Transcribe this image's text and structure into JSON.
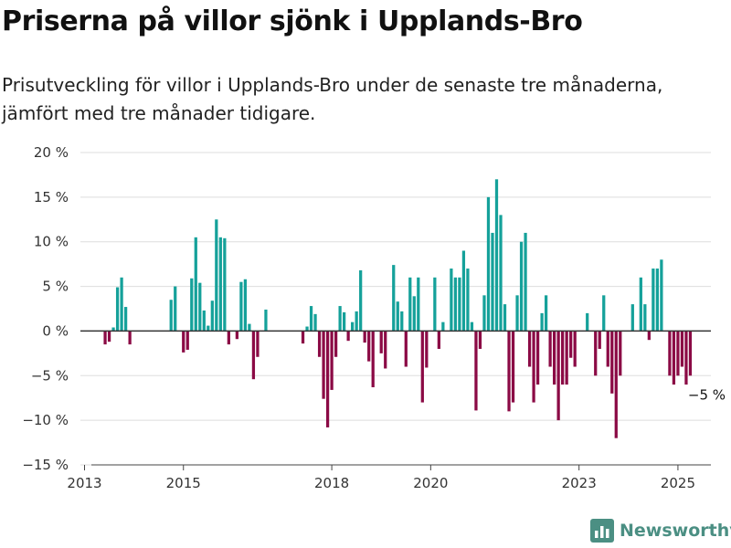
{
  "title": "Priserna på villor sjönk i Upplands-Bro",
  "subtitle": "Prisutveckling för villor i Upplands-Bro under de senaste tre månaderna, jämfört med tre månader tidigare.",
  "brand": {
    "name": "Newsworthy",
    "logo_icon": "newsworthy-logo-icon"
  },
  "colors": {
    "positive": "#15a19a",
    "negative": "#8b0a45",
    "grid": "#dddddd",
    "zero": "#333333"
  },
  "chart_data": {
    "type": "bar",
    "ylim": [
      -15,
      20
    ],
    "yticks": [
      -15,
      -10,
      -5,
      0,
      5,
      10,
      15,
      20
    ],
    "ytick_labels": [
      "−15 %",
      "−10 %",
      "−5 %",
      "0 %",
      "5 %",
      "10 %",
      "15 %",
      "20 %"
    ],
    "xlim": [
      "2012-12",
      "2025-09"
    ],
    "xticks": [
      "2013-01",
      "2015-01",
      "2018-01",
      "2020-01",
      "2023-01",
      "2025-01"
    ],
    "xtick_labels": [
      "2013",
      "2015",
      "2018",
      "2020",
      "2023",
      "2025"
    ],
    "grid": true,
    "annotation": {
      "x": "2025-04",
      "y": -5,
      "label": "−5 %"
    },
    "series": [
      {
        "values": [
          [
            "2013-06",
            -1.5
          ],
          [
            "2013-07",
            -1.2
          ],
          [
            "2013-08",
            0.4
          ],
          [
            "2013-09",
            4.9
          ],
          [
            "2013-10",
            6.0
          ],
          [
            "2013-11",
            2.7
          ],
          [
            "2013-12",
            -1.5
          ],
          [
            "2014-10",
            3.5
          ],
          [
            "2014-11",
            5.0
          ],
          [
            "2015-01",
            -2.4
          ],
          [
            "2015-02",
            -2.1
          ],
          [
            "2015-03",
            5.9
          ],
          [
            "2015-04",
            10.5
          ],
          [
            "2015-05",
            5.4
          ],
          [
            "2015-06",
            2.3
          ],
          [
            "2015-07",
            0.6
          ],
          [
            "2015-08",
            3.4
          ],
          [
            "2015-09",
            12.5
          ],
          [
            "2015-10",
            10.5
          ],
          [
            "2015-11",
            10.4
          ],
          [
            "2015-12",
            -1.5
          ],
          [
            "2016-02",
            -0.9
          ],
          [
            "2016-03",
            5.5
          ],
          [
            "2016-04",
            5.8
          ],
          [
            "2016-05",
            0.8
          ],
          [
            "2016-06",
            -5.4
          ],
          [
            "2016-07",
            -2.9
          ],
          [
            "2016-09",
            2.4
          ],
          [
            "2017-06",
            -1.4
          ],
          [
            "2017-07",
            0.5
          ],
          [
            "2017-08",
            2.8
          ],
          [
            "2017-09",
            1.9
          ],
          [
            "2017-10",
            -2.9
          ],
          [
            "2017-11",
            -7.6
          ],
          [
            "2017-12",
            -10.8
          ],
          [
            "2018-01",
            -6.6
          ],
          [
            "2018-02",
            -2.9
          ],
          [
            "2018-03",
            2.8
          ],
          [
            "2018-04",
            2.1
          ],
          [
            "2018-05",
            -1.1
          ],
          [
            "2018-06",
            1.0
          ],
          [
            "2018-07",
            2.2
          ],
          [
            "2018-08",
            6.8
          ],
          [
            "2018-09",
            -1.3
          ],
          [
            "2018-10",
            -3.4
          ],
          [
            "2018-11",
            -6.3
          ],
          [
            "2019-01",
            -2.5
          ],
          [
            "2019-02",
            -4.2
          ],
          [
            "2019-04",
            7.4
          ],
          [
            "2019-05",
            3.3
          ],
          [
            "2019-06",
            2.2
          ],
          [
            "2019-07",
            -4.0
          ],
          [
            "2019-08",
            6.0
          ],
          [
            "2019-09",
            3.9
          ],
          [
            "2019-10",
            6.0
          ],
          [
            "2019-11",
            -8.0
          ],
          [
            "2019-12",
            -4.1
          ],
          [
            "2020-02",
            6.0
          ],
          [
            "2020-03",
            -2.0
          ],
          [
            "2020-04",
            1.0
          ],
          [
            "2020-06",
            7.0
          ],
          [
            "2020-07",
            6.0
          ],
          [
            "2020-08",
            6.0
          ],
          [
            "2020-09",
            9.0
          ],
          [
            "2020-10",
            7.0
          ],
          [
            "2020-11",
            1.0
          ],
          [
            "2020-12",
            -8.9
          ],
          [
            "2021-01",
            -2.0
          ],
          [
            "2021-02",
            4.0
          ],
          [
            "2021-03",
            15.0
          ],
          [
            "2021-04",
            11.0
          ],
          [
            "2021-05",
            17.0
          ],
          [
            "2021-06",
            13.0
          ],
          [
            "2021-07",
            3.0
          ],
          [
            "2021-08",
            -9.0
          ],
          [
            "2021-09",
            -8.0
          ],
          [
            "2021-10",
            4.0
          ],
          [
            "2021-11",
            10.0
          ],
          [
            "2021-12",
            11.0
          ],
          [
            "2022-01",
            -4.0
          ],
          [
            "2022-02",
            -8.0
          ],
          [
            "2022-03",
            -6.0
          ],
          [
            "2022-04",
            2.0
          ],
          [
            "2022-05",
            4.0
          ],
          [
            "2022-06",
            -4.0
          ],
          [
            "2022-07",
            -6.0
          ],
          [
            "2022-08",
            -10.0
          ],
          [
            "2022-09",
            -6.0
          ],
          [
            "2022-10",
            -6.0
          ],
          [
            "2022-11",
            -3.0
          ],
          [
            "2022-12",
            -4.0
          ],
          [
            "2023-03",
            2.0
          ],
          [
            "2023-05",
            -5.0
          ],
          [
            "2023-06",
            -2.0
          ],
          [
            "2023-07",
            4.0
          ],
          [
            "2023-08",
            -4.0
          ],
          [
            "2023-09",
            -7.0
          ],
          [
            "2023-10",
            -12.0
          ],
          [
            "2023-11",
            -5.0
          ],
          [
            "2024-02",
            3.0
          ],
          [
            "2024-04",
            6.0
          ],
          [
            "2024-05",
            3.0
          ],
          [
            "2024-06",
            -1.0
          ],
          [
            "2024-07",
            7.0
          ],
          [
            "2024-08",
            7.0
          ],
          [
            "2024-09",
            8.0
          ],
          [
            "2024-11",
            -5.0
          ],
          [
            "2024-12",
            -6.0
          ],
          [
            "2025-01",
            -5.0
          ],
          [
            "2025-02",
            -4.0
          ],
          [
            "2025-03",
            -6.0
          ],
          [
            "2025-04",
            -5.0
          ]
        ]
      }
    ]
  }
}
